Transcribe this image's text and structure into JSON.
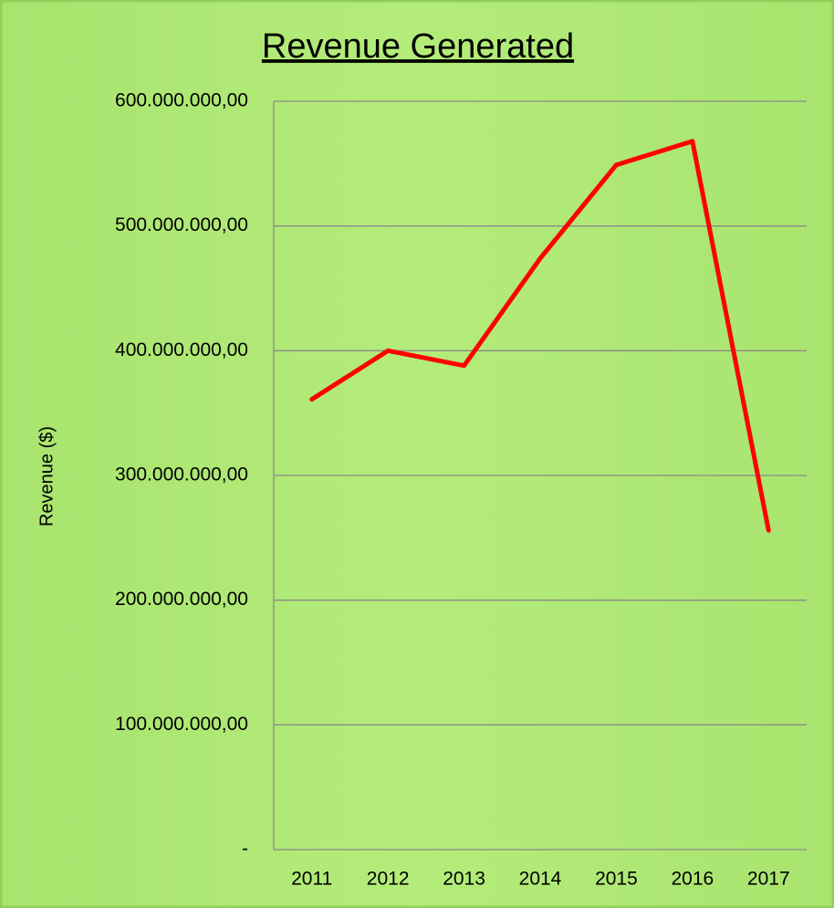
{
  "chart_data": {
    "type": "line",
    "title": "Revenue Generated",
    "y_label": "Revenue ($)",
    "categories": [
      "2011",
      "2012",
      "2013",
      "2014",
      "2015",
      "2016",
      "2017"
    ],
    "series": [
      {
        "name": "Revenue",
        "color": "#ff0000",
        "values": [
          361000000,
          400000000,
          388000000,
          474000000,
          549000000,
          568000000,
          256000000
        ]
      }
    ],
    "ylim": [
      0,
      600000000
    ],
    "yticks": [
      {
        "value": 0,
        "label": "-"
      },
      {
        "value": 100000000,
        "label": "100.000.000,00"
      },
      {
        "value": 200000000,
        "label": "200.000.000,00"
      },
      {
        "value": 300000000,
        "label": "300.000.000,00"
      },
      {
        "value": 400000000,
        "label": "400.000.000,00"
      },
      {
        "value": 500000000,
        "label": "500.000.000,00"
      },
      {
        "value": 600000000,
        "label": "600.000.000,00"
      }
    ],
    "grid": true
  }
}
